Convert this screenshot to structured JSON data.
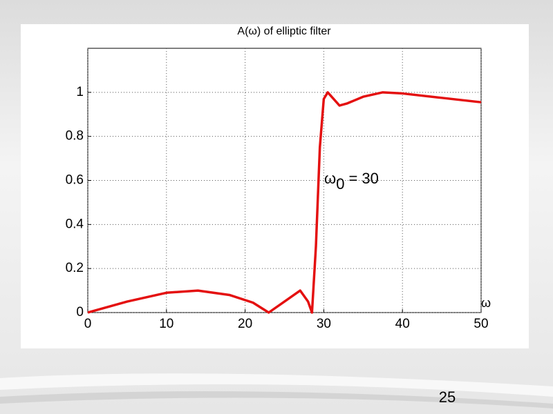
{
  "chart_data": {
    "type": "line",
    "title": "A(ω) of elliptic filter",
    "x_label": "ω",
    "annotation": {
      "symbol": "ω",
      "subscript": "0",
      "text": "= 30"
    },
    "x": [
      0,
      5,
      10,
      14,
      18,
      21,
      23,
      25,
      27,
      28,
      28.5,
      29,
      29.5,
      30,
      30.5,
      31,
      32,
      33,
      35,
      37.5,
      40,
      45,
      50
    ],
    "series": [
      {
        "name": "A",
        "color": "#e41010",
        "values": [
          0,
          0.05,
          0.09,
          0.1,
          0.08,
          0.045,
          0,
          0.05,
          0.1,
          0.05,
          0,
          0.3,
          0.75,
          0.97,
          1.0,
          0.98,
          0.94,
          0.95,
          0.98,
          1.0,
          0.995,
          0.975,
          0.955
        ]
      }
    ],
    "xlim": [
      0,
      50
    ],
    "xticks": [
      0,
      10,
      20,
      30,
      40,
      50
    ],
    "ylim": [
      0,
      1.2
    ],
    "yticks": [
      0,
      0.2,
      0.4,
      0.6,
      0.8,
      1
    ],
    "grid": true
  },
  "page_number": "25"
}
